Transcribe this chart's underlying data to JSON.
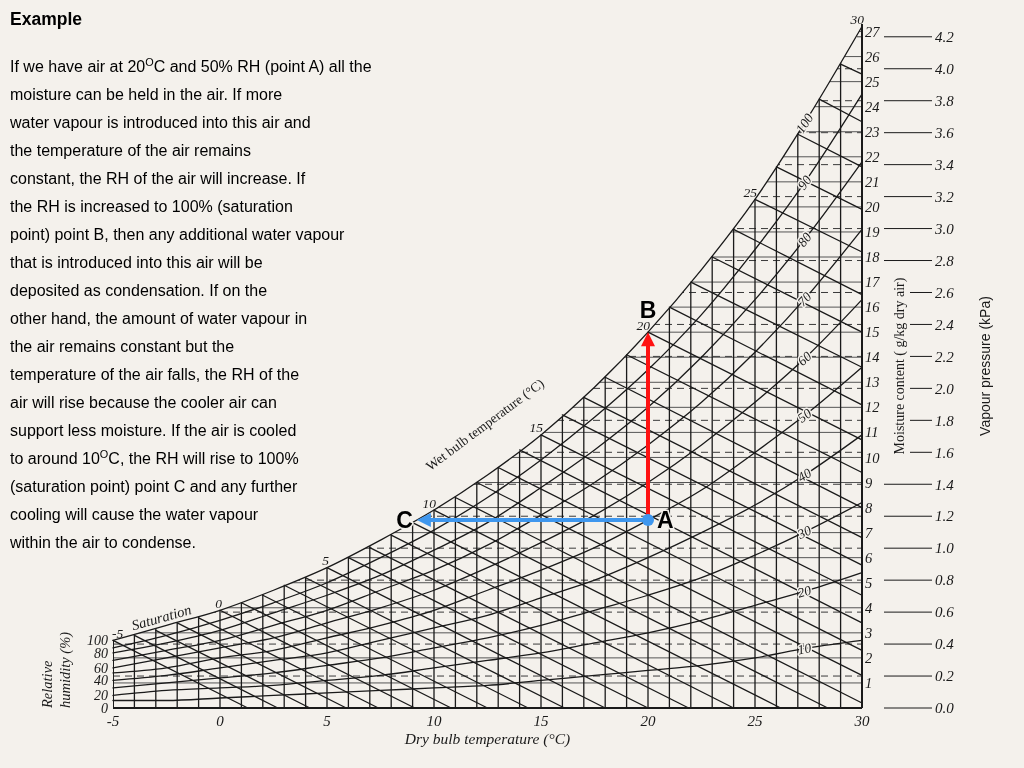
{
  "chart_data": {
    "type": "line",
    "title": "Example",
    "subtitle": "If we have air at 20$^{O}$C and 50% RH (point A) all the\nmoisture can be held in the air. If more\nwater vapour is introduced into this air and\nthe temperature of the air remains\nconstant, the RH of the air will increase. If\nthe RH is increased to 100% (saturation\npoint) point B, then any additional water vapour\nthat is introduced into this air will be\ndeposited as condensation. If on the\nother hand, the amount of water vapour in\nthe air remains constant but the\ntemperature of the air falls, the RH of the\nair will rise because the cooler air can\nsupport less moisture. If the air is cooled\nto around 10$^{O}$C, the RH will rise to 100%\n(saturation point) point C and any further\ncooling will cause the water vapour\nwithin the air to condense.",
    "xlabel": "Dry bulb temperature (°C)",
    "ylabel": "Moisture content ( g/kg dry air)",
    "y2label": "Vapour pressure (kPa)",
    "xlim": [
      -5,
      30
    ],
    "ylim": [
      0,
      27.3
    ],
    "y2lim": [
      0,
      4.28
    ],
    "xticks": [
      -5,
      {
        "value": -4,
        "label": null
      },
      {
        "value": -3,
        "label": null
      },
      {
        "value": -2,
        "label": null
      },
      {
        "value": -1,
        "label": null
      },
      0,
      {
        "value": 1,
        "label": null
      },
      {
        "value": 2,
        "label": null
      },
      {
        "value": 3,
        "label": null
      },
      {
        "value": 4,
        "label": null
      },
      5,
      {
        "value": 6,
        "label": null
      },
      {
        "value": 7,
        "label": null
      },
      {
        "value": 8,
        "label": null
      },
      {
        "value": 9,
        "label": null
      },
      10,
      {
        "value": 11,
        "label": null
      },
      {
        "value": 12,
        "label": null
      },
      {
        "value": 13,
        "label": null
      },
      {
        "value": 14,
        "label": null
      },
      15,
      {
        "value": 16,
        "label": null
      },
      {
        "value": 17,
        "label": null
      },
      {
        "value": 18,
        "label": null
      },
      {
        "value": 19,
        "label": null
      },
      20,
      {
        "value": 21,
        "label": null
      },
      {
        "value": 22,
        "label": null
      },
      {
        "value": 23,
        "label": null
      },
      {
        "value": 24,
        "label": null
      },
      25,
      {
        "value": 26,
        "label": null
      },
      {
        "value": 27,
        "label": null
      },
      {
        "value": 28,
        "label": null
      },
      {
        "value": 29,
        "label": null
      },
      30
    ],
    "yticks": [
      1,
      2,
      3,
      4,
      5,
      6,
      7,
      8,
      9,
      10,
      11,
      12,
      13,
      14,
      15,
      16,
      17,
      18,
      19,
      20,
      21,
      22,
      23,
      24,
      25,
      26,
      27
    ],
    "y2ticks": [
      {
        "value": 0,
        "label": "0.0"
      },
      0.2,
      0.4,
      0.6,
      0.8,
      {
        "value": 1,
        "label": "1.0"
      },
      1.2,
      1.4,
      1.6,
      1.8,
      {
        "value": 2,
        "label": "2.0"
      },
      2.2,
      2.4,
      2.6,
      2.8,
      {
        "value": 3,
        "label": "3.0"
      },
      3.2,
      3.4,
      3.6,
      3.8,
      {
        "value": 4,
        "label": "4.0"
      },
      4.2
    ],
    "grid": true,
    "x": [
      -5,
      -2.5,
      0,
      2.5,
      5,
      7.5,
      10,
      12.5,
      15,
      17.5,
      20,
      22.5,
      25,
      27.5,
      30
    ],
    "series": [
      {
        "name": "10",
        "color": "#1a1a1a",
        "values": [
          0.3,
          0.3,
          0.4,
          0.5,
          0.6,
          0.7,
          0.8,
          0.9,
          1.1,
          1.3,
          1.5,
          1.7,
          2.0,
          2.4,
          2.7
        ]
      },
      {
        "name": "20",
        "color": "#1a1a1a",
        "values": [
          0.5,
          0.7,
          0.8,
          0.9,
          1.1,
          1.3,
          1.6,
          1.9,
          2.2,
          2.6,
          3.0,
          3.5,
          4.1,
          4.7,
          5.4
        ]
      },
      {
        "name": "30",
        "color": "#1a1a1a",
        "values": [
          0.8,
          1.0,
          1.2,
          1.4,
          1.7,
          2.0,
          2.4,
          2.8,
          3.3,
          3.9,
          4.5,
          5.2,
          6.1,
          7.1,
          8.2
        ]
      },
      {
        "name": "40",
        "color": "#1a1a1a",
        "values": [
          1.1,
          1.3,
          1.6,
          1.9,
          2.2,
          2.7,
          3.2,
          3.7,
          4.4,
          5.1,
          6.0,
          7.0,
          8.1,
          9.4,
          10.9
        ]
      },
      {
        "name": "50",
        "color": "#1a1a1a",
        "values": [
          1.4,
          1.6,
          2.0,
          2.3,
          2.8,
          3.3,
          3.9,
          4.7,
          5.5,
          6.4,
          7.5,
          8.7,
          10.2,
          11.8,
          13.6
        ]
      },
      {
        "name": "60",
        "color": "#1a1a1a",
        "values": [
          1.6,
          2.0,
          2.4,
          2.8,
          3.4,
          4.0,
          4.7,
          5.6,
          6.6,
          7.7,
          9.0,
          10.5,
          12.2,
          14.1,
          16.3
        ]
      },
      {
        "name": "70",
        "color": "#1a1a1a",
        "values": [
          1.9,
          2.3,
          2.7,
          3.3,
          3.9,
          4.7,
          5.5,
          6.5,
          7.7,
          9.0,
          10.5,
          12.2,
          14.2,
          16.5,
          19.1
        ]
      },
      {
        "name": "80",
        "color": "#1a1a1a",
        "values": [
          2.2,
          2.6,
          3.1,
          3.8,
          4.5,
          5.3,
          6.3,
          7.4,
          8.8,
          10.3,
          12.0,
          14.0,
          16.3,
          18.9,
          21.8
        ]
      },
      {
        "name": "90",
        "color": "#1a1a1a",
        "values": [
          2.4,
          2.9,
          3.5,
          4.2,
          5.0,
          6.0,
          7.1,
          8.4,
          9.9,
          11.6,
          13.5,
          15.7,
          18.3,
          21.2,
          24.5
        ]
      },
      {
        "name": "100",
        "color": "#1a1a1a",
        "values": [
          2.7,
          3.3,
          3.9,
          4.7,
          5.6,
          6.7,
          7.9,
          9.3,
          10.9,
          12.8,
          15.0,
          17.5,
          20.3,
          23.6,
          27.2
        ]
      },
      {
        "color": "#1a1a1a",
        "x": [
          -5,
          1.3
        ],
        "values": [
          2.7,
          0
        ]
      },
      {
        "color": "#1a1a1a",
        "x": [
          -4,
          2.7
        ],
        "values": [
          2.9,
          0
        ]
      },
      {
        "color": "#1a1a1a",
        "x": [
          -3,
          4.2
        ],
        "values": [
          3.1,
          0
        ]
      },
      {
        "color": "#1a1a1a",
        "x": [
          -2,
          5.9
        ],
        "values": [
          3.4,
          0
        ]
      },
      {
        "color": "#1a1a1a",
        "x": [
          -1,
          7.4
        ],
        "values": [
          3.6,
          0
        ]
      },
      {
        "color": "#1a1a1a",
        "x": [
          0,
          9.1
        ],
        "values": [
          3.9,
          0
        ]
      },
      {
        "color": "#1a1a1a",
        "x": [
          1,
          10.8
        ],
        "values": [
          4.2,
          0
        ]
      },
      {
        "color": "#1a1a1a",
        "x": [
          2,
          12.5
        ],
        "values": [
          4.5,
          0
        ]
      },
      {
        "color": "#1a1a1a",
        "x": [
          3,
          14.4
        ],
        "values": [
          4.9,
          0
        ]
      },
      {
        "color": "#1a1a1a",
        "x": [
          4,
          16.1
        ],
        "values": [
          5.2,
          0
        ]
      },
      {
        "color": "#1a1a1a",
        "x": [
          5,
          18
        ],
        "values": [
          5.6,
          0
        ]
      },
      {
        "color": "#1a1a1a",
        "x": [
          6,
          20
        ],
        "values": [
          6,
          0
        ]
      },
      {
        "color": "#1a1a1a",
        "x": [
          7,
          21.9
        ],
        "values": [
          6.4,
          0
        ]
      },
      {
        "color": "#1a1a1a",
        "x": [
          8,
          24
        ],
        "values": [
          6.9,
          0
        ]
      },
      {
        "color": "#1a1a1a",
        "x": [
          9,
          26.2
        ],
        "values": [
          7.4,
          0
        ]
      },
      {
        "color": "#1a1a1a",
        "x": [
          10,
          28.4
        ],
        "values": [
          7.9,
          0
        ]
      },
      {
        "color": "#1a1a1a",
        "x": [
          11,
          30
        ],
        "values": [
          8.4,
          0.2
        ]
      },
      {
        "color": "#1a1a1a",
        "x": [
          12,
          30
        ],
        "values": [
          9,
          1.3
        ]
      },
      {
        "color": "#1a1a1a",
        "x": [
          13,
          30
        ],
        "values": [
          9.6,
          2.3
        ]
      },
      {
        "color": "#1a1a1a",
        "x": [
          14,
          30
        ],
        "values": [
          10.3,
          3.4
        ]
      },
      {
        "color": "#1a1a1a",
        "x": [
          15,
          30
        ],
        "values": [
          10.9,
          4.5
        ]
      },
      {
        "color": "#1a1a1a",
        "x": [
          16,
          30
        ],
        "values": [
          11.7,
          5.7
        ]
      },
      {
        "color": "#1a1a1a",
        "x": [
          17,
          30
        ],
        "values": [
          12.4,
          6.8
        ]
      },
      {
        "color": "#1a1a1a",
        "x": [
          18,
          30
        ],
        "values": [
          13.2,
          8
        ]
      },
      {
        "color": "#1a1a1a",
        "x": [
          19,
          30
        ],
        "values": [
          14.1,
          9.4
        ]
      },
      {
        "color": "#1a1a1a",
        "x": [
          20,
          30
        ],
        "values": [
          15,
          10.7
        ]
      },
      {
        "color": "#1a1a1a",
        "x": [
          21,
          30
        ],
        "values": [
          16,
          12.1
        ]
      },
      {
        "color": "#1a1a1a",
        "x": [
          22,
          30
        ],
        "values": [
          17,
          13.6
        ]
      },
      {
        "color": "#1a1a1a",
        "x": [
          23,
          30
        ],
        "values": [
          18,
          15
        ]
      },
      {
        "color": "#1a1a1a",
        "x": [
          24,
          30
        ],
        "values": [
          19.1,
          16.5
        ]
      },
      {
        "color": "#1a1a1a",
        "x": [
          25,
          30
        ],
        "values": [
          20.3,
          18.2
        ]
      },
      {
        "color": "#1a1a1a",
        "x": [
          26,
          30
        ],
        "values": [
          21.6,
          19.9
        ]
      },
      {
        "color": "#1a1a1a",
        "x": [
          27,
          30
        ],
        "values": [
          22.9,
          21.6
        ]
      },
      {
        "color": "#1a1a1a",
        "x": [
          28,
          30
        ],
        "values": [
          24.3,
          23.4
        ]
      },
      {
        "color": "#1a1a1a",
        "x": [
          29,
          30
        ],
        "values": [
          25.7,
          25.3
        ]
      }
    ],
    "annotations": [
      {
        "text": "A",
        "x": 20,
        "y": 7.5
      },
      {
        "text": "B",
        "x": 20,
        "y": 15
      },
      {
        "text": "C",
        "x": 9.2,
        "y": 7.5
      },
      {
        "text": "Saturation",
        "x": -2.6,
        "y": 3.2
      },
      {
        "text": "-5",
        "x": -5,
        "y": 2.7
      },
      {
        "text": "0",
        "x": 0,
        "y": 3.9
      },
      {
        "text": "5",
        "x": 5,
        "y": 5.6
      },
      {
        "text": "10",
        "x": 10,
        "y": 7.9
      },
      {
        "text": "15",
        "x": 15,
        "y": 10.9
      },
      {
        "text": "20",
        "x": 20,
        "y": 15
      },
      {
        "text": "25",
        "x": 25,
        "y": 20.3
      },
      {
        "text": "30",
        "x": 30,
        "y": 27.2
      },
      "0",
      {
        "text": "20",
        "x": -5,
        "y": 0.5
      },
      {
        "text": "40",
        "x": -5,
        "y": 1.1
      },
      {
        "text": "60",
        "x": -5,
        "y": 1.6
      },
      {
        "text": "80",
        "x": -5,
        "y": 2.2
      },
      {
        "text": "100",
        "x": -5,
        "y": 2.7
      },
      "Wet bulb temperature (°C)",
      "Relative\nhumidity (%)"
    ]
  }
}
